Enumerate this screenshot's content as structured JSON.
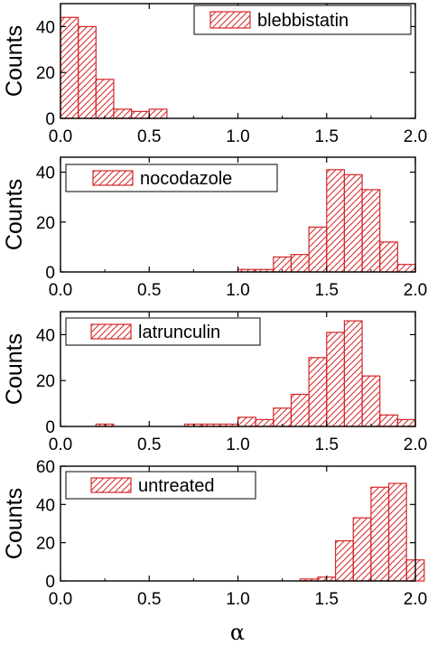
{
  "figure": {
    "xlabel": "α",
    "ylabel": "Counts",
    "colors": {
      "bar_edge": "#d62728",
      "axis": "#000000",
      "background": "#ffffff"
    }
  },
  "chart_data": [
    {
      "type": "bar",
      "legend": "blebbistatin",
      "legend_position": "top-right",
      "x_bin_starts": [
        0.0,
        0.1,
        0.2,
        0.3,
        0.4,
        0.5
      ],
      "values": [
        44,
        40,
        17,
        4,
        3,
        4
      ],
      "bin_width": 0.1,
      "xlim": [
        0.0,
        2.0
      ],
      "ylim": [
        0,
        50
      ],
      "xticks": [
        "0.0",
        "0.5",
        "1.0",
        "1.5",
        "2.0"
      ],
      "yticks": [
        "0",
        "20",
        "40"
      ],
      "ylabel": "Counts"
    },
    {
      "type": "bar",
      "legend": "nocodazole",
      "legend_position": "top-left",
      "x_bin_starts": [
        1.0,
        1.1,
        1.2,
        1.3,
        1.4,
        1.5,
        1.6,
        1.7,
        1.8,
        1.9
      ],
      "values": [
        1,
        1,
        6,
        7,
        18,
        41,
        39,
        33,
        12,
        3
      ],
      "bin_width": 0.1,
      "xlim": [
        0.0,
        2.0
      ],
      "ylim": [
        0,
        46
      ],
      "xticks": [
        "0.0",
        "0.5",
        "1.0",
        "1.5",
        "2.0"
      ],
      "yticks": [
        "0",
        "20",
        "40"
      ],
      "ylabel": "Counts"
    },
    {
      "type": "bar",
      "legend": "latrunculin",
      "legend_position": "top-left",
      "x_bin_starts": [
        0.2,
        0.7,
        0.8,
        0.9,
        1.0,
        1.1,
        1.2,
        1.3,
        1.4,
        1.5,
        1.6,
        1.7,
        1.8,
        1.9
      ],
      "values": [
        1,
        1,
        1,
        1,
        4,
        3,
        8,
        14,
        30,
        41,
        46,
        22,
        5,
        3
      ],
      "bin_width": 0.1,
      "xlim": [
        0.0,
        2.0
      ],
      "ylim": [
        0,
        50
      ],
      "xticks": [
        "0.0",
        "0.5",
        "1.0",
        "1.5",
        "2.0"
      ],
      "yticks": [
        "0",
        "20",
        "40"
      ],
      "ylabel": "Counts"
    },
    {
      "type": "bar",
      "legend": "untreated",
      "legend_position": "top-left",
      "x_bin_starts": [
        1.35,
        1.45,
        1.55,
        1.65,
        1.75,
        1.85,
        1.95
      ],
      "values": [
        1,
        2,
        21,
        33,
        49,
        51,
        11
      ],
      "bin_width": 0.1,
      "xlim": [
        0.0,
        2.0
      ],
      "ylim": [
        0,
        60
      ],
      "xticks": [
        "0.0",
        "0.5",
        "1.0",
        "1.5",
        "2.0"
      ],
      "yticks": [
        "0",
        "20",
        "40",
        "60"
      ],
      "ylabel": "Counts"
    }
  ]
}
